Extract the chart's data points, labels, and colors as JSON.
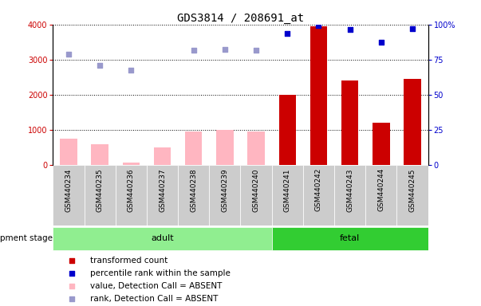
{
  "title": "GDS3814 / 208691_at",
  "samples": [
    "GSM440234",
    "GSM440235",
    "GSM440236",
    "GSM440237",
    "GSM440238",
    "GSM440239",
    "GSM440240",
    "GSM440241",
    "GSM440242",
    "GSM440243",
    "GSM440244",
    "GSM440245"
  ],
  "transformed_count": [
    null,
    null,
    null,
    null,
    null,
    null,
    null,
    2000,
    3950,
    2400,
    1200,
    2450
  ],
  "percentile_rank": [
    null,
    null,
    null,
    null,
    null,
    null,
    null,
    3750,
    3970,
    3850,
    3500,
    3870
  ],
  "absent_value": [
    750,
    600,
    75,
    500,
    950,
    1000,
    950,
    null,
    null,
    null,
    null,
    null
  ],
  "absent_rank": [
    3150,
    2830,
    2700,
    null,
    3280,
    3300,
    3280,
    null,
    null,
    null,
    null,
    null
  ],
  "development_stage": [
    "adult",
    "adult",
    "adult",
    "adult",
    "adult",
    "adult",
    "adult",
    "fetal",
    "fetal",
    "fetal",
    "fetal",
    "fetal"
  ],
  "adult_color": "#90EE90",
  "fetal_color": "#32CD32",
  "bar_color_present": "#CC0000",
  "bar_color_absent": "#FFB6C1",
  "dot_color_present": "#0000CC",
  "dot_color_absent": "#9999CC",
  "cell_bg_color": "#CCCCCC",
  "ylim_left": [
    0,
    4000
  ],
  "ylim_right": [
    0,
    100
  ],
  "yticks_left": [
    0,
    1000,
    2000,
    3000,
    4000
  ],
  "yticks_right": [
    0,
    25,
    50,
    75,
    100
  ],
  "yticklabels_right": [
    "0",
    "25",
    "50",
    "75",
    "100%"
  ],
  "legend_items": [
    {
      "color": "#CC0000",
      "label": "transformed count"
    },
    {
      "color": "#0000CC",
      "label": "percentile rank within the sample"
    },
    {
      "color": "#FFB6C1",
      "label": "value, Detection Call = ABSENT"
    },
    {
      "color": "#9999CC",
      "label": "rank, Detection Call = ABSENT"
    }
  ]
}
